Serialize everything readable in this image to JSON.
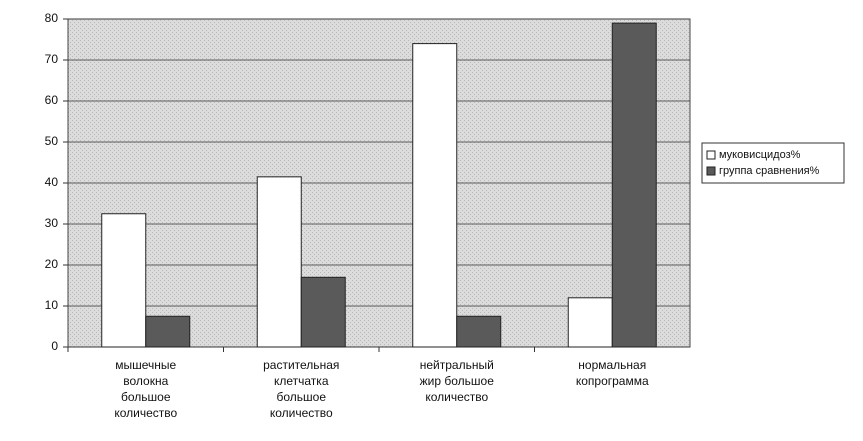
{
  "chart_data": {
    "type": "bar",
    "categories": [
      [
        "мышечные",
        "волокна",
        "большое",
        "количество"
      ],
      [
        "растительная",
        "клетчатка",
        "большое",
        "количество"
      ],
      [
        "нейтральный",
        "жир большое",
        "количество"
      ],
      [
        "нормальная",
        "копрограмма"
      ]
    ],
    "series": [
      {
        "name": "муковисцидоз%",
        "color": "#ffffff",
        "values": [
          32.5,
          41.5,
          74,
          12
        ]
      },
      {
        "name": "группа сравнения%",
        "color": "#5a5a5a",
        "values": [
          7.5,
          17,
          7.5,
          79
        ]
      }
    ],
    "ylim": [
      0,
      80
    ],
    "yticks": [
      0,
      10,
      20,
      30,
      40,
      50,
      60,
      70,
      80
    ],
    "grid": true,
    "legend": "right"
  }
}
